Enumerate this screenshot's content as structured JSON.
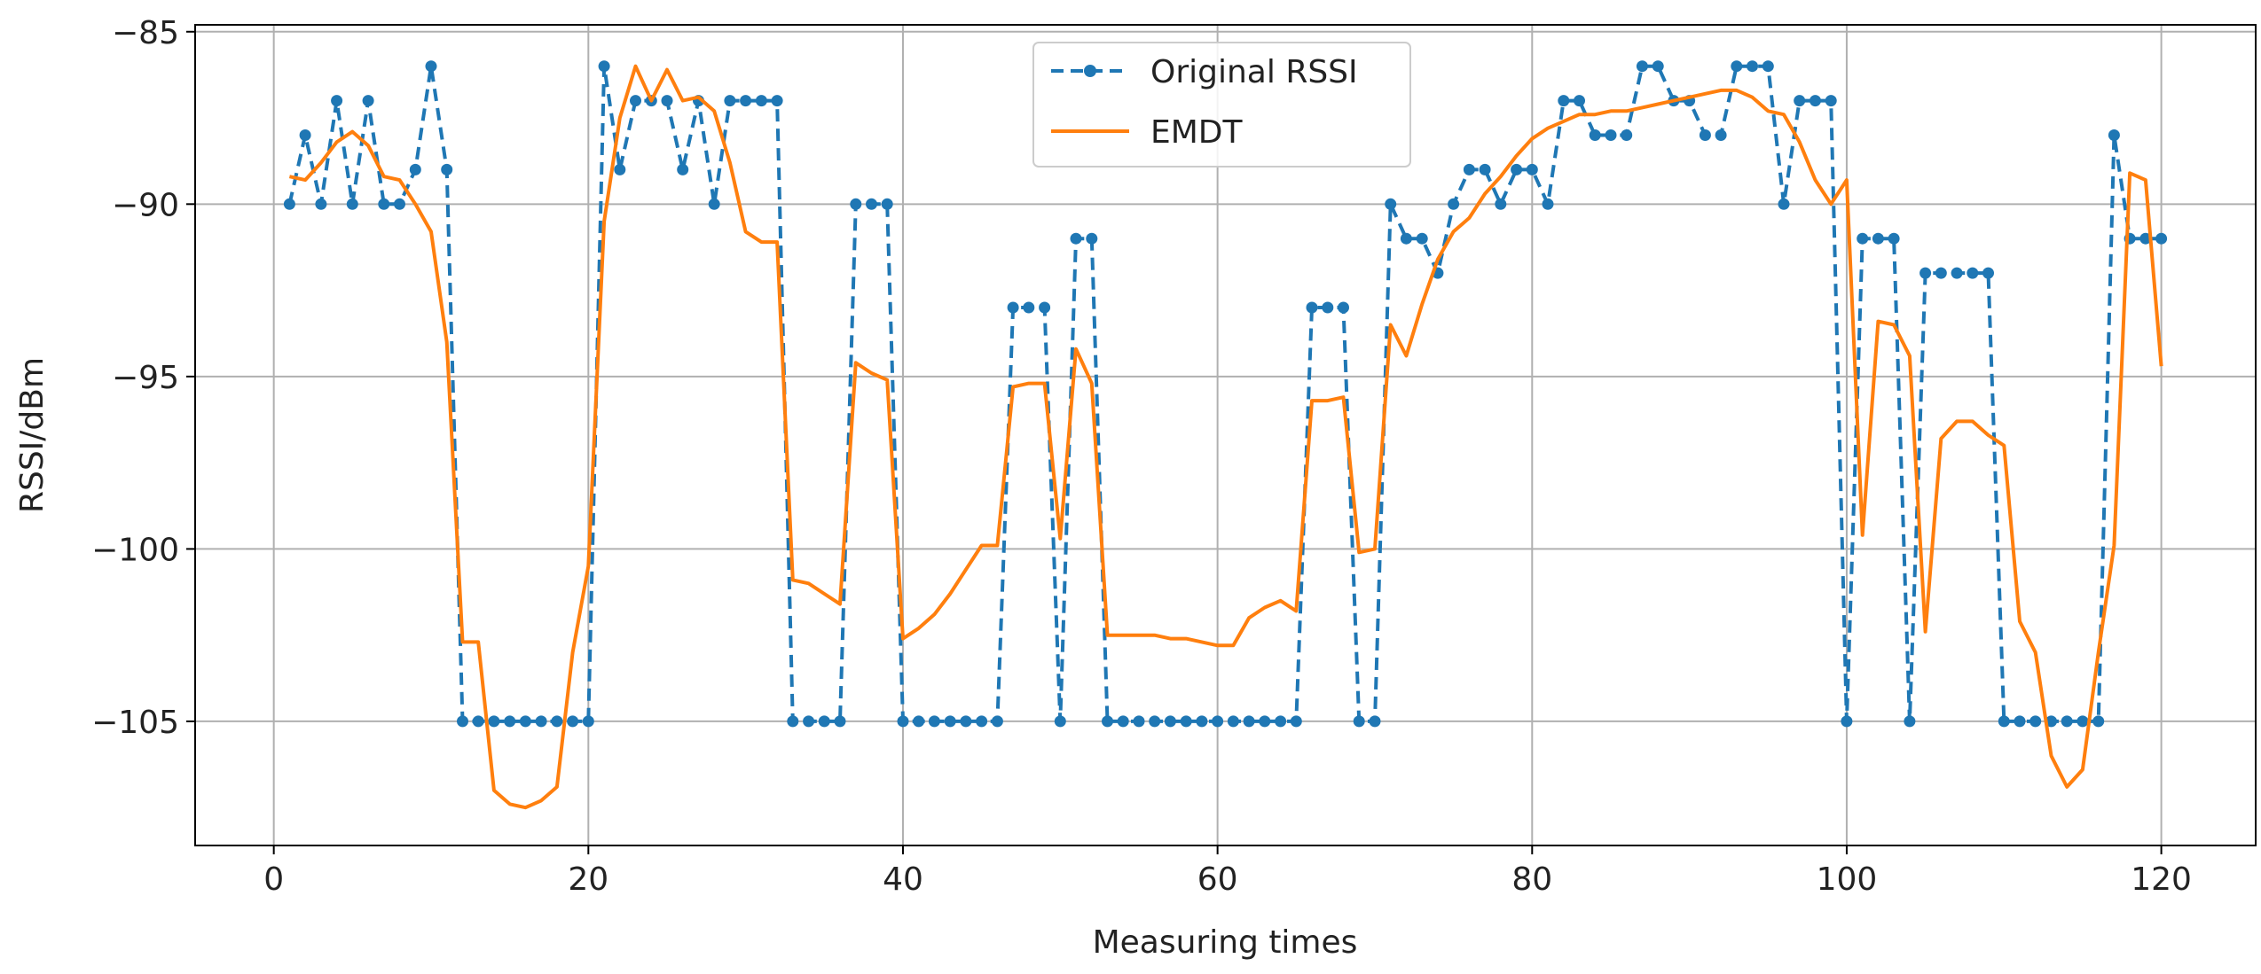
{
  "chart_data": {
    "type": "line",
    "title": "",
    "xlabel": "Measuring times",
    "ylabel": "RSSI/dBm",
    "xlim": [
      -5,
      126
    ],
    "ylim": [
      -108.6,
      -84.8
    ],
    "xticks": [
      0,
      20,
      40,
      60,
      80,
      100,
      120
    ],
    "yticks": [
      -85,
      -90,
      -95,
      -100,
      -105
    ],
    "xtick_labels": [
      "0",
      "20",
      "40",
      "60",
      "80",
      "100",
      "120"
    ],
    "ytick_labels": [
      "−85",
      "−90",
      "−95",
      "−100",
      "−105"
    ],
    "grid": true,
    "legend_position": "top-center",
    "x": [
      1,
      2,
      3,
      4,
      5,
      6,
      7,
      8,
      9,
      10,
      11,
      12,
      13,
      14,
      15,
      16,
      17,
      18,
      19,
      20,
      21,
      22,
      23,
      24,
      25,
      26,
      27,
      28,
      29,
      30,
      31,
      32,
      33,
      34,
      35,
      36,
      37,
      38,
      39,
      40,
      41,
      42,
      43,
      44,
      45,
      46,
      47,
      48,
      49,
      50,
      51,
      52,
      53,
      54,
      55,
      56,
      57,
      58,
      59,
      60,
      61,
      62,
      63,
      64,
      65,
      66,
      67,
      68,
      69,
      70,
      71,
      72,
      73,
      74,
      75,
      76,
      77,
      78,
      79,
      80,
      81,
      82,
      83,
      84,
      85,
      86,
      87,
      88,
      89,
      90,
      91,
      92,
      93,
      94,
      95,
      96,
      97,
      98,
      99,
      100,
      101,
      102,
      103,
      104,
      105,
      106,
      107,
      108,
      109,
      110,
      111,
      112,
      113,
      114,
      115,
      116,
      117,
      118,
      119,
      120
    ],
    "series": [
      {
        "name": "Original RSSI",
        "color": "#1f77b4",
        "style": "dashed-marker",
        "values": [
          -90,
          -88,
          -90,
          -87,
          -90,
          -87,
          -90,
          -90,
          -89,
          -86,
          -89,
          -105,
          -105,
          -105,
          -105,
          -105,
          -105,
          -105,
          -105,
          -105,
          -86,
          -89,
          -87,
          -87,
          -87,
          -89,
          -87,
          -90,
          -87,
          -87,
          -87,
          -87,
          -105,
          -105,
          -105,
          -105,
          -90,
          -90,
          -90,
          -105,
          -105,
          -105,
          -105,
          -105,
          -105,
          -105,
          -93,
          -93,
          -93,
          -105,
          -91,
          -91,
          -105,
          -105,
          -105,
          -105,
          -105,
          -105,
          -105,
          -105,
          -105,
          -105,
          -105,
          -105,
          -105,
          -93,
          -93,
          -93,
          -105,
          -105,
          -90,
          -91,
          -91,
          -92,
          -90,
          -89,
          -89,
          -90,
          -89,
          -89,
          -90,
          -87,
          -87,
          -88,
          -88,
          -88,
          -86,
          -86,
          -87,
          -87,
          -88,
          -88,
          -86,
          -86,
          -86,
          -90,
          -87,
          -87,
          -87,
          -105,
          -91,
          -91,
          -91,
          -105,
          -92,
          -92,
          -92,
          -92,
          -92,
          -105,
          -105,
          -105,
          -105,
          -105,
          -105,
          -105,
          -88,
          -91,
          -91,
          -91
        ]
      },
      {
        "name": "EMDT",
        "color": "#ff7f0e",
        "style": "solid",
        "values": [
          -89.2,
          -89.3,
          -88.8,
          -88.2,
          -87.9,
          -88.3,
          -89.2,
          -89.3,
          -90.0,
          -90.8,
          -94.0,
          -102.7,
          -102.7,
          -107.0,
          -107.4,
          -107.5,
          -107.3,
          -106.9,
          -103.0,
          -100.5,
          -90.5,
          -87.5,
          -86.0,
          -87.0,
          -86.1,
          -87.0,
          -86.9,
          -87.3,
          -88.8,
          -90.8,
          -91.1,
          -91.1,
          -100.9,
          -101.0,
          -101.3,
          -101.6,
          -94.6,
          -94.9,
          -95.1,
          -102.6,
          -102.3,
          -101.9,
          -101.3,
          -100.6,
          -99.9,
          -99.9,
          -95.3,
          -95.2,
          -95.2,
          -99.7,
          -94.2,
          -95.2,
          -102.5,
          -102.5,
          -102.5,
          -102.5,
          -102.6,
          -102.6,
          -102.7,
          -102.8,
          -102.8,
          -102.0,
          -101.7,
          -101.5,
          -101.8,
          -95.7,
          -95.7,
          -95.6,
          -100.1,
          -100.0,
          -93.5,
          -94.4,
          -92.9,
          -91.6,
          -90.8,
          -90.4,
          -89.7,
          -89.2,
          -88.6,
          -88.1,
          -87.8,
          -87.6,
          -87.4,
          -87.4,
          -87.3,
          -87.3,
          -87.2,
          -87.1,
          -87.0,
          -86.9,
          -86.8,
          -86.7,
          -86.7,
          -86.9,
          -87.3,
          -87.4,
          -88.2,
          -89.3,
          -90.0,
          -89.3,
          -99.6,
          -93.4,
          -93.5,
          -94.4,
          -102.4,
          -96.8,
          -96.3,
          -96.3,
          -96.7,
          -97.0,
          -102.1,
          -103.0,
          -106.0,
          -106.9,
          -106.4,
          -103.0,
          -99.9,
          -89.1,
          -89.3,
          -94.7
        ]
      }
    ]
  }
}
